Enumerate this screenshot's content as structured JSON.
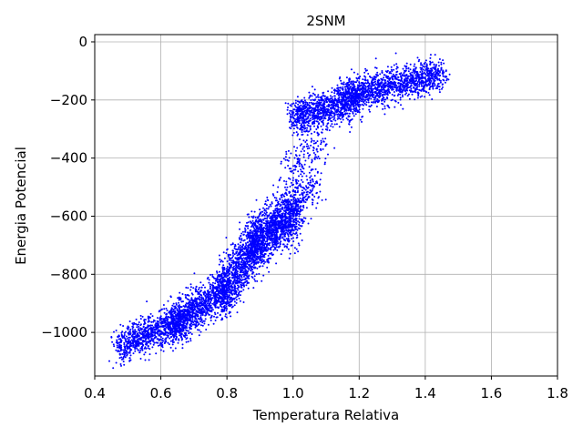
{
  "chart_data": {
    "type": "scatter",
    "title": "2SNM",
    "xlabel": "Temperatura Relativa",
    "ylabel": "Energia Potencial",
    "xlim": [
      0.4,
      1.8
    ],
    "ylim": [
      -1150,
      25
    ],
    "xticks": [
      0.4,
      0.6,
      0.8,
      1.0,
      1.2,
      1.4,
      1.6,
      1.8
    ],
    "xtick_labels": [
      "0.4",
      "0.6",
      "0.8",
      "1.0",
      "1.2",
      "1.4",
      "1.6",
      "1.8"
    ],
    "yticks": [
      0,
      -200,
      -400,
      -600,
      -800,
      -1000
    ],
    "ytick_labels": [
      "0",
      "−200",
      "−400",
      "−600",
      "−800",
      "−1000"
    ],
    "grid": true,
    "series": [
      {
        "color": "#0000ff",
        "point_groups": [
          {
            "x_range": [
              0.47,
              0.66
            ],
            "y_center": [
              -1050,
              -960
            ],
            "y_spread": 30,
            "count": 900
          },
          {
            "x_range": [
              0.63,
              0.8
            ],
            "y_center": [
              -980,
              -850
            ],
            "y_spread": 35,
            "count": 1100
          },
          {
            "x_range": [
              0.78,
              0.9
            ],
            "y_center": [
              -860,
              -690
            ],
            "y_spread": 45,
            "count": 1000
          },
          {
            "x_range": [
              0.87,
              1.02
            ],
            "y_center": [
              -700,
              -590
            ],
            "y_spread": 45,
            "count": 1200
          },
          {
            "x_range": [
              0.92,
              1.08
            ],
            "y_center": [
              -620,
              -480
            ],
            "y_spread": 40,
            "count": 300
          },
          {
            "x_range": [
              0.98,
              1.1
            ],
            "y_center": [
              -430,
              -330
            ],
            "y_spread": 35,
            "count": 150
          },
          {
            "x_range": [
              1.0,
              1.2
            ],
            "y_center": [
              -260,
              -200
            ],
            "y_spread": 30,
            "count": 1000
          },
          {
            "x_range": [
              1.15,
              1.45
            ],
            "y_center": [
              -190,
              -110
            ],
            "y_spread": 28,
            "count": 1300
          }
        ]
      }
    ]
  }
}
